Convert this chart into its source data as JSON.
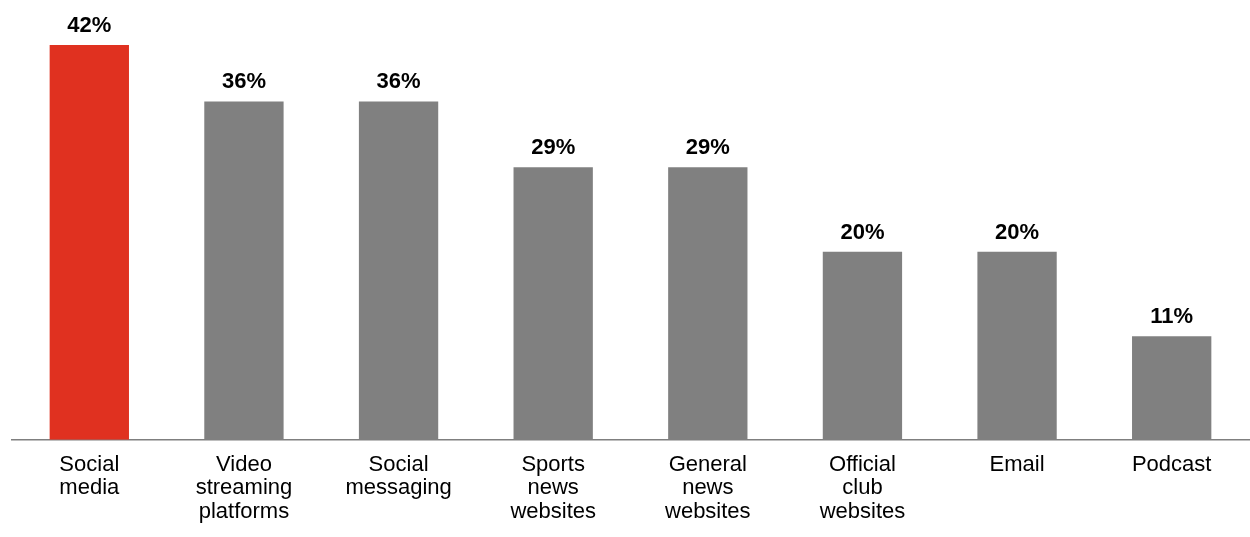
{
  "chart_data": {
    "type": "bar",
    "categories": [
      "Social media",
      "Video streaming platforms",
      "Social messaging",
      "Sports news websites",
      "General news websites",
      "Official club websites",
      "Email",
      "Podcast"
    ],
    "values": [
      42,
      36,
      36,
      29,
      29,
      20,
      20,
      11
    ],
    "colors": [
      "#e03120",
      "#808080",
      "#808080",
      "#808080",
      "#808080",
      "#808080",
      "#808080",
      "#808080"
    ],
    "value_labels": [
      "42%",
      "36%",
      "36%",
      "29%",
      "29%",
      "20%",
      "20%",
      "11%"
    ],
    "grid": false,
    "legend": false
  }
}
